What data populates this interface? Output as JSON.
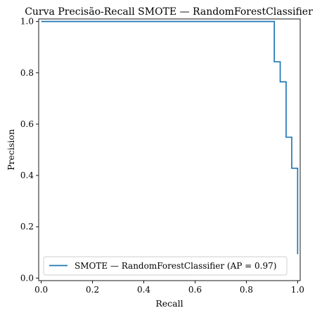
{
  "chart_data": {
    "type": "line",
    "title": "Curva Precisão-Recall SMOTE — RandomForestClassifier",
    "xlabel": "Recall",
    "ylabel": "Precision",
    "xlim": [
      -0.01,
      1.01
    ],
    "ylim": [
      -0.01,
      1.01
    ],
    "xticks": [
      "0.0",
      "0.2",
      "0.4",
      "0.6",
      "0.8",
      "1.0"
    ],
    "yticks": [
      "0.0",
      "0.2",
      "0.4",
      "0.6",
      "0.8",
      "1.0"
    ],
    "grid": false,
    "legend_position": "lower-left",
    "series": [
      {
        "name": "SMOTE — RandomForestClassifier (AP = 0.97)",
        "color": "#1f77b4",
        "drawstyle": "steps-post",
        "x": [
          0.0,
          0.909,
          0.909,
          0.932,
          0.932,
          0.955,
          0.955,
          0.977,
          0.977,
          1.0,
          1.0
        ],
        "y": [
          1.0,
          1.0,
          0.843,
          0.843,
          0.765,
          0.765,
          0.549,
          0.549,
          0.428,
          0.428,
          0.093
        ]
      }
    ]
  }
}
